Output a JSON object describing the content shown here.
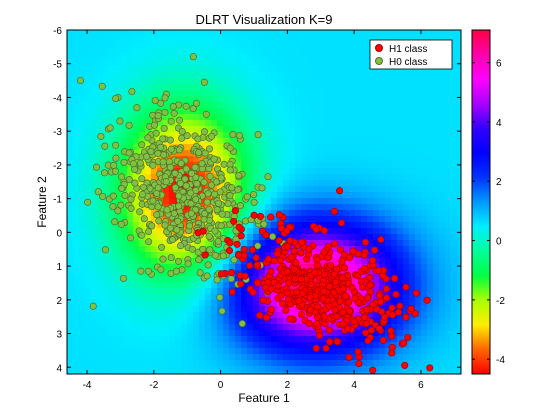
{
  "chart_data": {
    "type": "scatter",
    "title": "DLRT Visualization K=9",
    "xlabel": "Feature 1",
    "ylabel": "Feature 2",
    "xlim": [
      -4.6,
      7.2
    ],
    "ylim": [
      -6,
      4.2
    ],
    "y_reversed": true,
    "xticks": [
      -4,
      -2,
      0,
      2,
      4,
      6
    ],
    "yticks": [
      -6,
      -5,
      -4,
      -3,
      -2,
      -1,
      0,
      1,
      2,
      3,
      4
    ],
    "grid": false,
    "legend_position": "top-right",
    "background": "heatmap of DLRT statistic",
    "colorbar": {
      "ticks": [
        -4,
        -2,
        0,
        2,
        4,
        6
      ],
      "range": [
        -4.5,
        7.1
      ],
      "colormap": "hsv-reversed",
      "stops": [
        "#ff0000",
        "#ff6600",
        "#ffee00",
        "#aaff00",
        "#00ff44",
        "#00ff99",
        "#00eeff",
        "#0099ff",
        "#0033ff",
        "#0000ff",
        "#3300ff",
        "#aa00ff",
        "#ff00ff",
        "#ff00aa",
        "#ff0044"
      ]
    },
    "series": [
      {
        "name": "H1 class",
        "color": "#ff0000",
        "edge": "#aa0000",
        "center": [
          2.9,
          1.6
        ],
        "spread": [
          1.3,
          0.7
        ],
        "rotation_deg": 28,
        "count": 500,
        "hotspots": [
          [
            3.4,
            1.7
          ],
          [
            4.8,
            1.6
          ],
          [
            2.3,
            0.2
          ]
        ]
      },
      {
        "name": "H0 class",
        "color": "#7fc241",
        "edge": "#556b2f",
        "center": [
          -1.1,
          -1.2
        ],
        "spread": [
          1.0,
          1.3
        ],
        "rotation_deg": -30,
        "count": 520,
        "hotspots": [
          [
            -1.2,
            -3.3
          ],
          [
            -2.0,
            -0.5
          ],
          [
            0.4,
            -0.2
          ]
        ]
      }
    ]
  }
}
